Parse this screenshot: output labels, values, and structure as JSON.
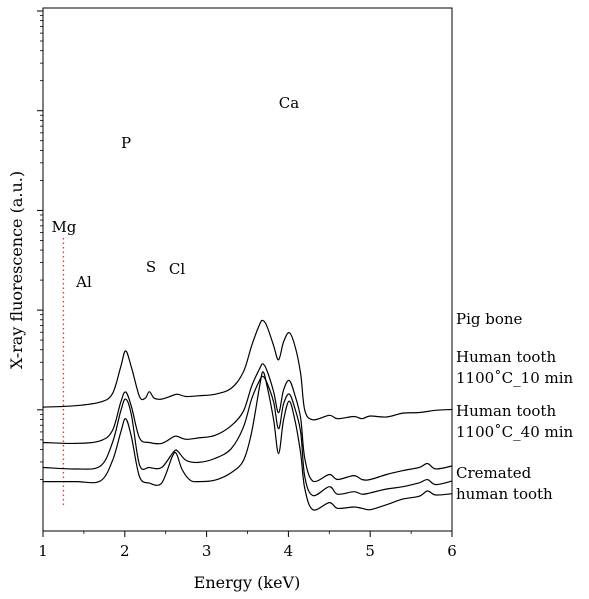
{
  "chart_data": {
    "type": "line",
    "title": "",
    "xlabel": "Energy (keV)",
    "ylabel": "X-ray fluorescence (a.u.)",
    "xlim": [
      1,
      6
    ],
    "x_ticks": [
      "1",
      "2",
      "3",
      "4",
      "5",
      "6"
    ],
    "y_scale": "log",
    "y_tick_labels": "none",
    "grid": false,
    "legend": "none",
    "line_color": "#000000",
    "marker": {
      "label": "Mg",
      "x": 1.25,
      "color": "#e03030",
      "style": "dotted"
    },
    "peak_labels": [
      {
        "text": "P",
        "x": 2.01
      },
      {
        "text": "S",
        "x": 2.31
      },
      {
        "text": "Cl",
        "x": 2.62
      },
      {
        "text": "Al",
        "x": 1.49
      },
      {
        "text": "Ca",
        "x": 3.69
      }
    ],
    "series": [
      {
        "name": "Pig bone",
        "x": [
          1.0,
          1.4,
          1.7,
          1.85,
          1.95,
          2.01,
          2.08,
          2.18,
          2.25,
          2.3,
          2.36,
          2.45,
          2.6,
          2.65,
          2.75,
          2.9,
          3.1,
          3.3,
          3.45,
          3.55,
          3.65,
          3.69,
          3.74,
          3.82,
          3.88,
          3.94,
          4.01,
          4.08,
          4.15,
          4.2,
          4.3,
          4.5,
          4.6,
          4.8,
          4.9,
          5.0,
          5.2,
          5.4,
          5.6,
          5.8,
          6.0
        ],
        "y": [
          1.2,
          1.3,
          1.6,
          2.6,
          12,
          30,
          12,
          2.2,
          2.0,
          2.9,
          2.0,
          1.9,
          2.4,
          2.5,
          2.2,
          2.3,
          2.5,
          3.5,
          9,
          40,
          140,
          170,
          120,
          40,
          18,
          50,
          85,
          40,
          8,
          1.0,
          0.58,
          0.75,
          0.62,
          0.7,
          0.62,
          0.72,
          0.68,
          0.85,
          0.88,
          1.0,
          1.05
        ]
      },
      {
        "name": "Human tooth 1100°C_10 min",
        "x": [
          1.0,
          1.4,
          1.7,
          1.85,
          1.95,
          2.01,
          2.08,
          2.18,
          2.3,
          2.45,
          2.6,
          2.65,
          2.75,
          2.9,
          3.1,
          3.3,
          3.45,
          3.55,
          3.65,
          3.69,
          3.74,
          3.82,
          3.88,
          3.94,
          4.01,
          4.08,
          4.15,
          4.2,
          4.3,
          4.5,
          4.6,
          4.8,
          4.9,
          5.0,
          5.2,
          5.4,
          5.6,
          5.7,
          5.8,
          6.0
        ],
        "y": [
          1.0,
          0.95,
          1.1,
          2.0,
          10,
          18,
          8,
          1.3,
          1.0,
          0.95,
          1.4,
          1.4,
          1.2,
          1.3,
          1.5,
          2.6,
          6,
          25,
          70,
          90,
          60,
          18,
          5.5,
          20,
          35,
          15,
          4,
          0.4,
          0.11,
          0.16,
          0.12,
          0.15,
          0.12,
          0.12,
          0.16,
          0.2,
          0.24,
          0.3,
          0.22,
          0.26
        ]
      },
      {
        "name": "Human tooth 1100°C_40 min",
        "x": [
          1.0,
          1.4,
          1.7,
          1.85,
          1.95,
          2.01,
          2.08,
          2.18,
          2.3,
          2.45,
          2.6,
          2.65,
          2.75,
          2.9,
          3.1,
          3.3,
          3.45,
          3.55,
          3.65,
          3.69,
          3.74,
          3.82,
          3.88,
          3.94,
          4.01,
          4.08,
          4.15,
          4.2,
          4.3,
          4.5,
          4.6,
          4.8,
          4.9,
          5.0,
          5.2,
          5.4,
          5.6,
          5.7,
          5.8,
          6.0
        ],
        "y": [
          0.12,
          0.11,
          0.13,
          0.5,
          3.0,
          6.0,
          2.5,
          0.14,
          0.12,
          0.12,
          0.3,
          0.3,
          0.18,
          0.16,
          0.2,
          0.35,
          1.2,
          6,
          18,
          22,
          15,
          5,
          1.1,
          4.5,
          8,
          3.5,
          0.9,
          0.07,
          0.024,
          0.04,
          0.026,
          0.03,
          0.026,
          0.028,
          0.035,
          0.04,
          0.05,
          0.06,
          0.045,
          0.055
        ]
      },
      {
        "name": "Cremated human tooth",
        "x": [
          1.0,
          1.4,
          1.7,
          1.85,
          1.95,
          2.01,
          2.08,
          2.18,
          2.3,
          2.45,
          2.58,
          2.63,
          2.7,
          2.8,
          2.9,
          3.1,
          3.3,
          3.45,
          3.55,
          3.65,
          3.69,
          3.74,
          3.82,
          3.88,
          3.94,
          4.01,
          4.08,
          4.15,
          4.2,
          4.3,
          4.5,
          4.6,
          4.8,
          4.9,
          5.0,
          5.2,
          5.4,
          5.6,
          5.7,
          5.8,
          6.0
        ],
        "y": [
          0.006,
          0.006,
          0.0062,
          0.02,
          0.1,
          0.22,
          0.08,
          0.008,
          0.0055,
          0.0055,
          0.025,
          0.03,
          0.012,
          0.0065,
          0.006,
          0.0065,
          0.01,
          0.02,
          0.1,
          1.5,
          3.2,
          1.4,
          0.2,
          0.03,
          0.2,
          0.6,
          0.2,
          0.03,
          0.004,
          0.0012,
          0.0018,
          0.0013,
          0.0014,
          0.0013,
          0.0012,
          0.0016,
          0.0022,
          0.0026,
          0.0035,
          0.0028,
          0.003
        ]
      }
    ],
    "series_labels": [
      [
        "Pig bone"
      ],
      [
        "Human tooth",
        "1100˚C_10 min"
      ],
      [
        "Human tooth",
        "1100˚C_40 min"
      ],
      [
        "Cremated",
        "human tooth"
      ]
    ]
  }
}
